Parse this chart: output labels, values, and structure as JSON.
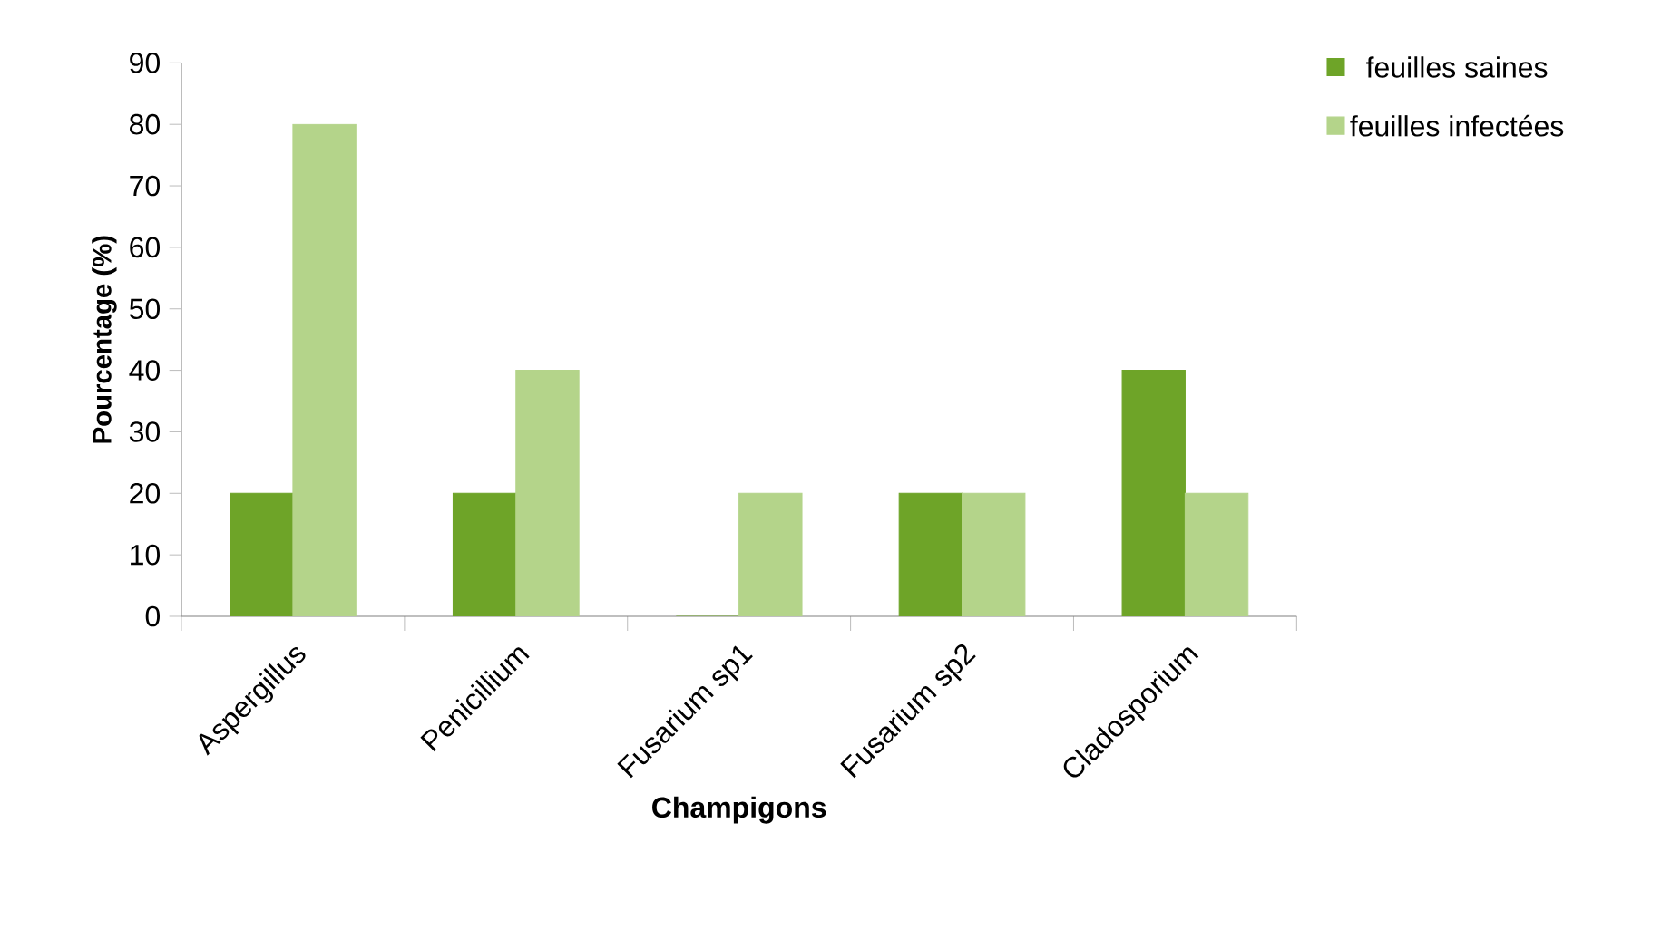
{
  "chart_data": {
    "type": "bar",
    "xlabel": "Champigons",
    "ylabel": "Pourcentage (%)",
    "categories": [
      "Aspergillus",
      "Penicillium",
      "Fusarium sp1",
      "Fusarium sp2",
      "Cladosporium"
    ],
    "series": [
      {
        "name": "feuilles saines",
        "color": "#6ea428",
        "values": [
          20,
          20,
          0,
          20,
          40
        ]
      },
      {
        "name": "feuilles infectées",
        "color": "#b4d48a",
        "values": [
          80,
          40,
          20,
          20,
          20
        ]
      }
    ],
    "ylim": [
      0,
      90
    ],
    "yticks": [
      0,
      10,
      20,
      30,
      40,
      50,
      60,
      70,
      80,
      90
    ],
    "grid": false,
    "legend": "top right"
  }
}
